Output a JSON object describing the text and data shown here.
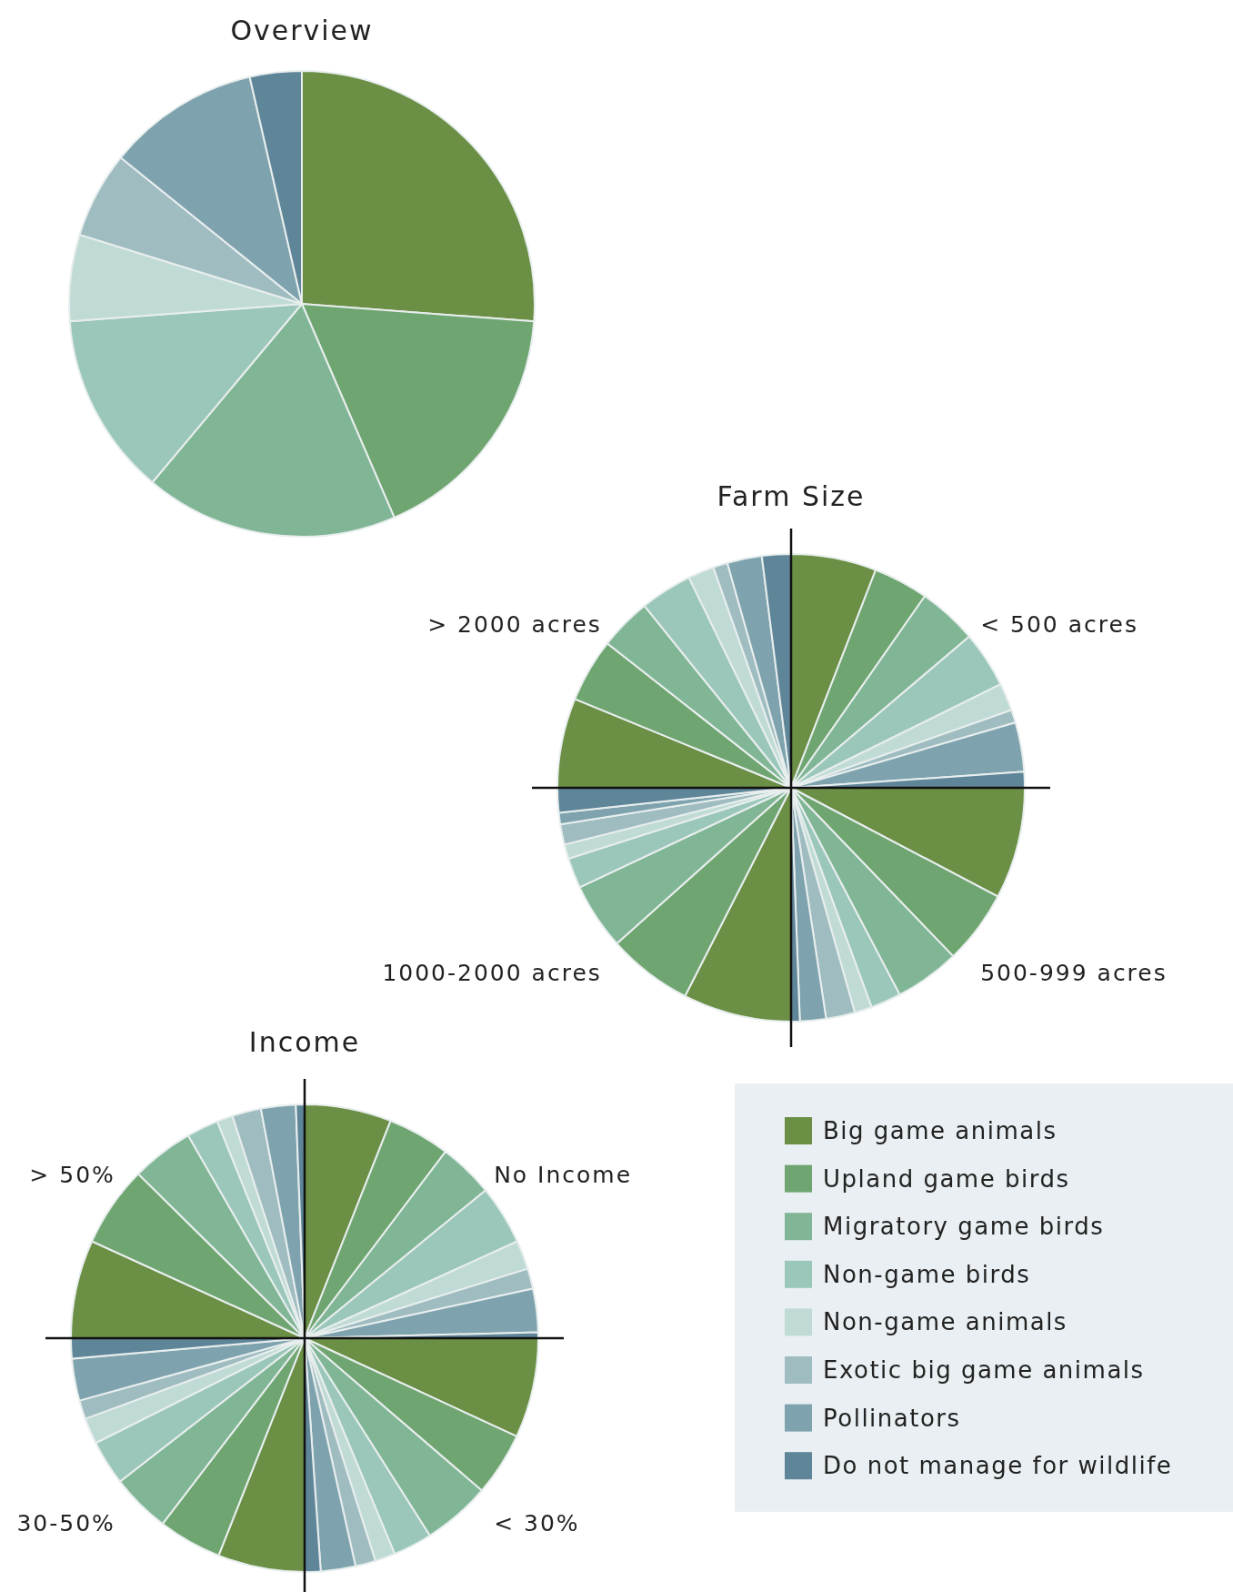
{
  "chart_data": [
    {
      "type": "pie",
      "title": "Overview",
      "legend": "bottom right",
      "categories": [
        "Big game animals",
        "Upland game birds",
        "Migratory game birds",
        "Non-game birds",
        "Non-game animals",
        "Exotic big game animals",
        "Pollinators",
        "Do not manage for wildlife"
      ],
      "colors": [
        "#6a8f45",
        "#6fa570",
        "#80b695",
        "#9bc7ba",
        "#c0dbd5",
        "#9fbcc0",
        "#7ea3ae",
        "#5f8599"
      ],
      "values": [
        26.2,
        17.3,
        17.6,
        12.7,
        6.0,
        6.0,
        10.6,
        3.6
      ]
    },
    {
      "type": "pie",
      "title": "Farm Size",
      "annotations": [
        "< 500 acres",
        "500-999 acres",
        "1000-2000 acres",
        "> 2000 acres"
      ],
      "categories": [
        null,
        null,
        null,
        null,
        null,
        null,
        null,
        null,
        null,
        null,
        null,
        null,
        null,
        null,
        null,
        null,
        null,
        null,
        null,
        null,
        null,
        null,
        null,
        null,
        null,
        null,
        null,
        null,
        null,
        null,
        null,
        null
      ],
      "colors": [
        "#6a8f45",
        "#6fa570",
        "#80b695",
        "#9bc7ba",
        "#c0dbd5",
        "#9fbcc0",
        "#7ea3ae",
        "#5f8599",
        "#6a8f45",
        "#6fa570",
        "#80b695",
        "#9bc7ba",
        "#c0dbd5",
        "#9fbcc0",
        "#7ea3ae",
        "#5f8599",
        "#6a8f45",
        "#6fa570",
        "#80b695",
        "#9bc7ba",
        "#c0dbd5",
        "#9fbcc0",
        "#7ea3ae",
        "#5f8599",
        "#6a8f45",
        "#6fa570",
        "#80b695",
        "#9bc7ba",
        "#c0dbd5",
        "#9fbcc0",
        "#7ea3ae",
        "#5f8599"
      ],
      "values": [
        5.9,
        3.8,
        4.1,
        3.9,
        1.9,
        0.9,
        3.4,
        1.1,
        7.7,
        5.1,
        4.5,
        2.1,
        1.2,
        2.0,
        1.8,
        0.6,
        7.5,
        5.9,
        4.6,
        2.1,
        1.0,
        1.4,
        0.8,
        1.7,
        6.2,
        4.4,
        3.6,
        3.6,
        1.8,
        1.0,
        2.4,
        2.0
      ]
    },
    {
      "type": "pie",
      "title": "Income",
      "annotations": [
        "No Income",
        "< 30%",
        "30-50%",
        "> 50%"
      ],
      "categories": [
        null,
        null,
        null,
        null,
        null,
        null,
        null,
        null,
        null,
        null,
        null,
        null,
        null,
        null,
        null,
        null,
        null,
        null,
        null,
        null,
        null,
        null,
        null,
        null,
        null,
        null,
        null,
        null,
        null,
        null,
        null,
        null
      ],
      "colors": [
        "#6a8f45",
        "#6fa570",
        "#80b695",
        "#9bc7ba",
        "#c0dbd5",
        "#9fbcc0",
        "#7ea3ae",
        "#5f8599",
        "#6a8f45",
        "#6fa570",
        "#80b695",
        "#9bc7ba",
        "#c0dbd5",
        "#9fbcc0",
        "#7ea3ae",
        "#5f8599",
        "#6a8f45",
        "#6fa570",
        "#80b695",
        "#9bc7ba",
        "#c0dbd5",
        "#9fbcc0",
        "#7ea3ae",
        "#5f8599",
        "#6a8f45",
        "#6fa570",
        "#80b695",
        "#9bc7ba",
        "#c0dbd5",
        "#9fbcc0",
        "#7ea3ae",
        "#5f8599"
      ],
      "values": [
        6.0,
        4.3,
        3.8,
        4.1,
        2.0,
        1.4,
        3.0,
        0.4,
        6.9,
        4.4,
        4.7,
        2.7,
        1.4,
        1.4,
        2.4,
        1.1,
        6.0,
        4.4,
        4.1,
        3.1,
        1.8,
        1.3,
        2.9,
        1.4,
        6.8,
        5.6,
        4.3,
        2.2,
        1.1,
        2.0,
        2.4,
        0.6
      ]
    }
  ]
}
